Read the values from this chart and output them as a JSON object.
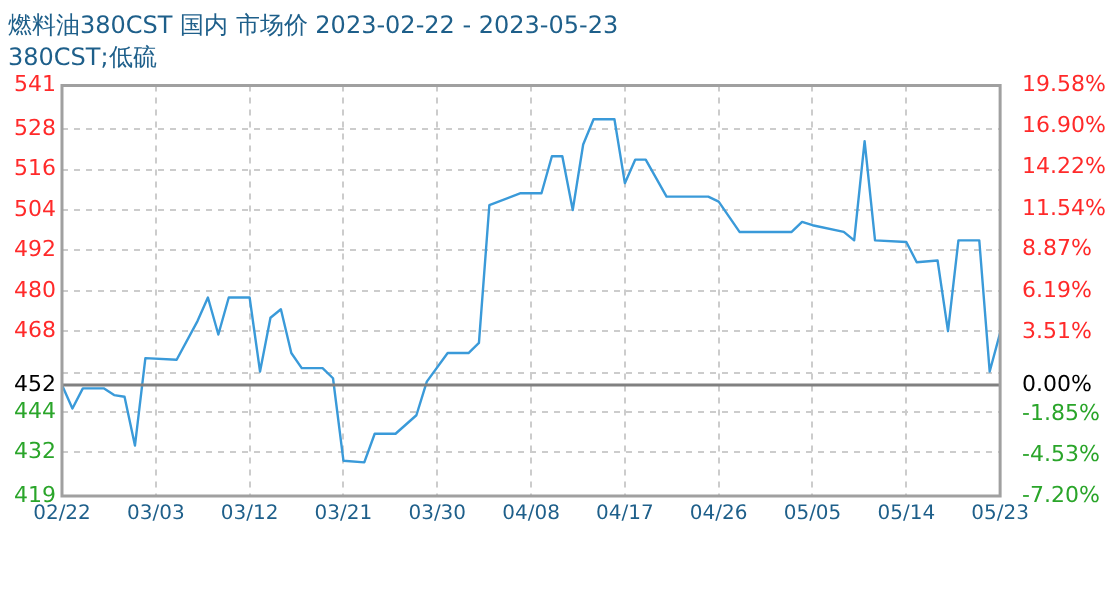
{
  "chart_data": {
    "type": "line",
    "title": "燃料油380CST 国内 市场价 2023-02-22 - 2023-05-23",
    "subtitle": "380CST;低硫",
    "x": [
      "2023-02-22",
      "2023-02-23",
      "2023-02-24",
      "2023-02-26",
      "2023-02-27",
      "2023-02-28",
      "2023-03-01",
      "2023-03-02",
      "2023-03-05",
      "2023-03-07",
      "2023-03-08",
      "2023-03-09",
      "2023-03-10",
      "2023-03-12",
      "2023-03-13",
      "2023-03-14",
      "2023-03-15",
      "2023-03-16",
      "2023-03-17",
      "2023-03-19",
      "2023-03-20",
      "2023-03-21",
      "2023-03-23",
      "2023-03-24",
      "2023-03-26",
      "2023-03-28",
      "2023-03-29",
      "2023-03-31",
      "2023-04-02",
      "2023-04-03",
      "2023-04-04",
      "2023-04-07",
      "2023-04-09",
      "2023-04-10",
      "2023-04-11",
      "2023-04-12",
      "2023-04-13",
      "2023-04-14",
      "2023-04-16",
      "2023-04-17",
      "2023-04-18",
      "2023-04-19",
      "2023-04-21",
      "2023-04-25",
      "2023-04-26",
      "2023-04-28",
      "2023-05-03",
      "2023-05-04",
      "2023-05-05",
      "2023-05-08",
      "2023-05-09",
      "2023-05-10",
      "2023-05-11",
      "2023-05-14",
      "2023-05-15",
      "2023-05-17",
      "2023-05-18",
      "2023-05-19",
      "2023-05-21",
      "2023-05-22",
      "2023-05-23"
    ],
    "series": [
      {
        "color": "#3a9ad9",
        "values": [
          452,
          445,
          451,
          451,
          449,
          448.5,
          434,
          460,
          459.5,
          471,
          478,
          467,
          478,
          478,
          456,
          472,
          474.5,
          461.5,
          457,
          457,
          454,
          429.5,
          429,
          437.5,
          437.5,
          443,
          453,
          461.5,
          461.5,
          464.5,
          505.5,
          509,
          509,
          520,
          520,
          504,
          523.5,
          531,
          531,
          512,
          519,
          519,
          508,
          508,
          506.5,
          497.5,
          497.5,
          500.5,
          499.5,
          497.5,
          495,
          524.5,
          495,
          494.5,
          488.5,
          489,
          468,
          495,
          495,
          456,
          467.5
        ]
      }
    ],
    "ylim": [
      419,
      541
    ],
    "yticks": [
      419,
      432,
      444,
      452,
      {
        "value": 455.6,
        "label": null
      },
      468,
      480,
      492,
      504,
      516,
      528,
      541
    ],
    "y2lim": [
      -7.2,
      19.58
    ],
    "y2ticks": [
      {
        "value": -7.2,
        "label": "-7.20%"
      },
      {
        "value": -4.53,
        "label": "-4.53%"
      },
      {
        "value": -1.85,
        "label": "-1.85%"
      },
      {
        "value": 0,
        "label": "0.00%"
      },
      {
        "value": 3.51,
        "label": "3.51%"
      },
      {
        "value": 6.19,
        "label": "6.19%"
      },
      {
        "value": 8.87,
        "label": "8.87%"
      },
      {
        "value": 11.54,
        "label": "11.54%"
      },
      {
        "value": 14.22,
        "label": "14.22%"
      },
      {
        "value": 16.9,
        "label": "16.90%"
      },
      {
        "value": 19.58,
        "label": "19.58%"
      }
    ],
    "xlim": [
      "2023-02-22",
      "2023-05-23"
    ],
    "xticks": [
      {
        "value": "2023-02-22",
        "label": "02/22"
      },
      {
        "value": "2023-03-03",
        "label": "03/03"
      },
      {
        "value": "2023-03-12",
        "label": "03/12"
      },
      {
        "value": "2023-03-21",
        "label": "03/21"
      },
      {
        "value": "2023-03-30",
        "label": "03/30"
      },
      {
        "value": "2023-04-08",
        "label": "04/08"
      },
      {
        "value": "2023-04-17",
        "label": "04/17"
      },
      {
        "value": "2023-04-26",
        "label": "04/26"
      },
      {
        "value": "2023-05-05",
        "label": "05/05"
      },
      {
        "value": "2023-05-14",
        "label": "05/14"
      },
      {
        "value": "2023-05-23",
        "label": "05/23"
      }
    ],
    "ref_lines": [
      {
        "axis": "y",
        "value": 452,
        "color": "#808080"
      }
    ],
    "grid": true,
    "legend": false,
    "marker": "none",
    "line_style": "solid"
  }
}
